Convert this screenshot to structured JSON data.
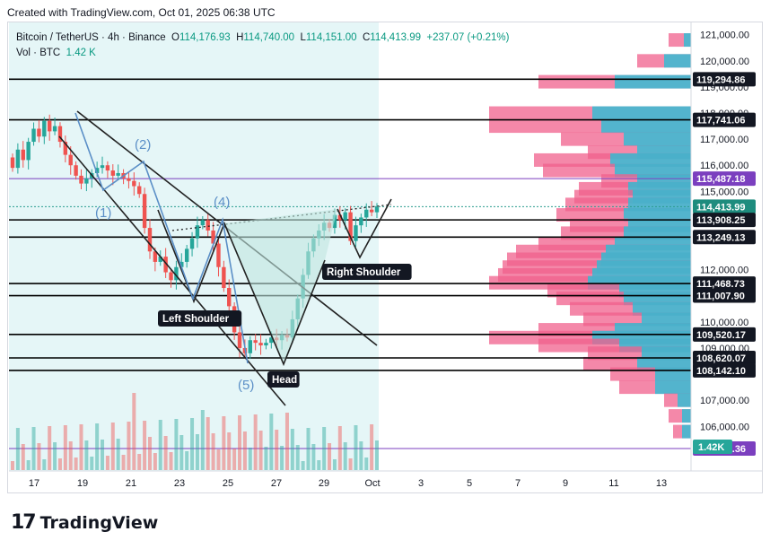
{
  "header": {
    "caption": "Created with TradingView.com, Oct 01, 2025 06:38 UTC"
  },
  "legend": {
    "symbol": "Bitcoin / TetherUS · 4h · Binance",
    "o_label": "O",
    "o_value": "114,176.93",
    "h_label": "H",
    "h_value": "114,740.00",
    "l_label": "L",
    "l_value": "114,151.00",
    "c_label": "C",
    "c_value": "114,413.99",
    "change": "+237.07 (+0.21%)",
    "vol_label": "Vol · BTC",
    "vol_value": "1.42 K"
  },
  "footer": {
    "brand": "TradingView",
    "logo_mark": "17"
  },
  "colors": {
    "up": "#26a69a",
    "down": "#ef5350",
    "shade": "#e5f6f7",
    "vp_pink": "#f0608c",
    "vp_cyan": "#2bbfd6",
    "line": "#000000",
    "wave": "#5b8fc7",
    "purple": "#7b3fbf"
  },
  "chart_data": {
    "type": "candlestick",
    "title": "Bitcoin / TetherUS · 4h · Binance",
    "x_ticks": [
      "17",
      "19",
      "21",
      "23",
      "25",
      "27",
      "29",
      "Oct",
      "3",
      "5",
      "7",
      "9",
      "11",
      "13"
    ],
    "y_ticks": [
      "121,000.00",
      "120,000.00",
      "119,000.00",
      "118,000.00",
      "117,000.00",
      "116,000.00",
      "115,000.00",
      "112,000.00",
      "110,000.00",
      "109,000.00",
      "107,000.00",
      "106,000.00"
    ],
    "ylim": [
      104600,
      121300
    ],
    "level_labels": [
      {
        "value": 119294.86,
        "text": "119,294.86",
        "style": "black"
      },
      {
        "value": 117741.06,
        "text": "117,741.06",
        "style": "black"
      },
      {
        "value": 115487.18,
        "text": "115,487.18",
        "style": "purple"
      },
      {
        "value": 114413.99,
        "text": "114,413.99",
        "style": "green"
      },
      {
        "value": 113908.25,
        "text": "113,908.25",
        "style": "black"
      },
      {
        "value": 113249.13,
        "text": "113,249.13",
        "style": "black"
      },
      {
        "value": 111468.73,
        "text": "111,468.73",
        "style": "black"
      },
      {
        "value": 111007.9,
        "text": "111,007.90",
        "style": "black"
      },
      {
        "value": 109520.17,
        "text": "109,520.17",
        "style": "black"
      },
      {
        "value": 108620.07,
        "text": "108,620.07",
        "style": "black"
      },
      {
        "value": 108142.1,
        "text": "108,142.10",
        "style": "black"
      },
      {
        "value": 105148.36,
        "text": "105,148.36",
        "style": "purple"
      }
    ],
    "volume_label": "1.42K",
    "annotations": [
      "(1)",
      "(2)",
      "(4)",
      "(5)",
      "Left Shoulder",
      "Head",
      "Right Shoulder"
    ],
    "ohlc_closes": [
      115900,
      116600,
      116200,
      116900,
      117400,
      117100,
      117700,
      117300,
      117500,
      116900,
      116400,
      116000,
      115600,
      115300,
      115500,
      115700,
      115900,
      116000,
      115800,
      115600,
      115700,
      115500,
      115400,
      115200,
      114900,
      113600,
      112700,
      112300,
      112500,
      111900,
      111600,
      112100,
      112300,
      112800,
      113200,
      113700,
      113900,
      113500,
      113000,
      112100,
      111300,
      110600,
      109600,
      109000,
      108800,
      109300,
      109200,
      109100,
      109200,
      109400,
      109300,
      109500,
      109400,
      110100,
      110900,
      111800,
      112700,
      113200,
      113500,
      113800,
      113600,
      114100,
      113900,
      114200,
      113100,
      113700,
      114000,
      114300,
      114200,
      114400
    ]
  }
}
